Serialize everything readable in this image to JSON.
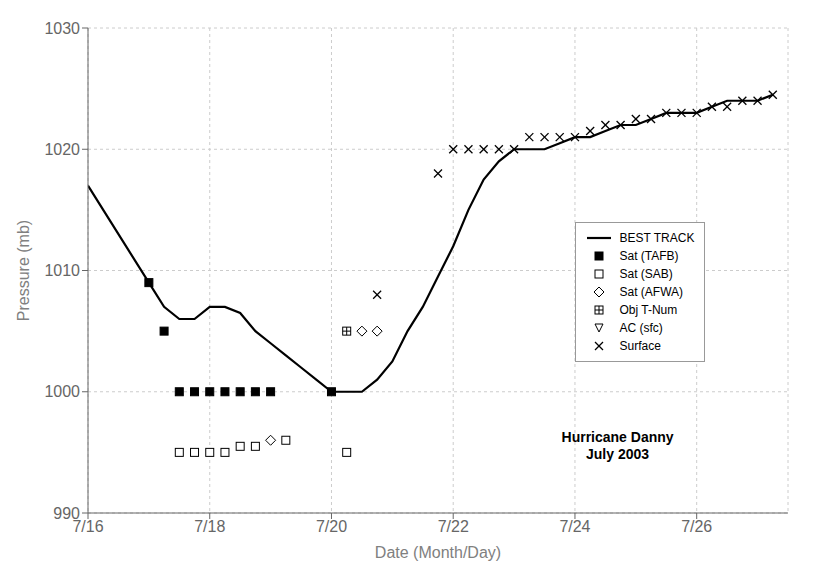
{
  "chart_data": {
    "type": "line",
    "x_label": "Date (Month/Day)",
    "y_label": "Pressure (mb)",
    "xlim": [
      16.0,
      27.5
    ],
    "xticks": [
      {
        "value": 16,
        "label": "7/16"
      },
      {
        "value": 18,
        "label": "7/18"
      },
      {
        "value": 20,
        "label": "7/20"
      },
      {
        "value": 22,
        "label": "7/22"
      },
      {
        "value": 24,
        "label": "7/24"
      },
      {
        "value": 26,
        "label": "7/26"
      }
    ],
    "ylim": [
      990,
      1030
    ],
    "yticks": [
      990,
      1000,
      1010,
      1020,
      1030
    ],
    "grid": true,
    "legend": "right",
    "series": [
      {
        "name": "BEST TRACK",
        "type": "line",
        "line_style": "solid",
        "color": "#000000",
        "x": [
          16.0,
          16.5,
          17.0,
          17.25,
          17.5,
          17.75,
          18.0,
          18.25,
          18.5,
          18.75,
          19.0,
          19.25,
          19.5,
          19.75,
          20.0,
          20.25,
          20.5,
          20.75,
          21.0,
          21.25,
          21.5,
          21.75,
          22.0,
          22.25,
          22.5,
          22.75,
          23.0,
          23.25,
          23.5,
          23.75,
          24.0,
          24.25,
          24.5,
          24.75,
          25.0,
          25.25,
          25.5,
          25.75,
          26.0,
          26.25,
          26.5,
          26.75,
          27.0,
          27.25
        ],
        "values": [
          1017,
          1013,
          1009,
          1007,
          1006,
          1006,
          1007,
          1007,
          1006.5,
          1005,
          1004,
          1003,
          1002,
          1001,
          1000,
          1000,
          1000,
          1001,
          1002.5,
          1005,
          1007,
          1009.5,
          1012,
          1015,
          1017.5,
          1019,
          1020,
          1020,
          1020,
          1020.5,
          1021,
          1021,
          1021.5,
          1022,
          1022,
          1022.5,
          1023,
          1023,
          1023,
          1023.5,
          1024,
          1024,
          1024,
          1024.5
        ]
      },
      {
        "name": "Sat (TAFB)",
        "type": "scatter",
        "marker": "square",
        "color": "#000000",
        "x": [
          17.0,
          17.25,
          17.5,
          17.75,
          18.0,
          18.25,
          18.5,
          18.75,
          19.0,
          20.0
        ],
        "values": [
          1009,
          1005,
          1000,
          1000,
          1000,
          1000,
          1000,
          1000,
          1000,
          1000
        ]
      },
      {
        "name": "Sat (SAB)",
        "type": "scatter",
        "marker": "square_open",
        "color": "#000000",
        "x": [
          17.5,
          17.75,
          18.0,
          18.25,
          18.5,
          18.75,
          19.25,
          20.25
        ],
        "values": [
          995,
          995,
          995,
          995,
          995.5,
          995.5,
          996,
          995
        ]
      },
      {
        "name": "Sat (AFWA)",
        "type": "scatter",
        "marker": "diamond_open",
        "color": "#000000",
        "x": [
          19.0,
          20.5,
          20.75
        ],
        "values": [
          996,
          1005,
          1005
        ]
      },
      {
        "name": "Obj T-Num",
        "type": "scatter",
        "marker": "boxed_plus",
        "color": "#000000",
        "x": [
          20.25
        ],
        "values": [
          1005
        ]
      },
      {
        "name": "AC (sfc)",
        "type": "scatter",
        "marker": "triangle_down_open",
        "color": "#000000",
        "x": [],
        "values": []
      },
      {
        "name": "Surface",
        "type": "scatter",
        "marker": "x",
        "color": "#000000",
        "x": [
          20.75,
          21.75,
          22.0,
          22.25,
          22.5,
          22.75,
          23.0,
          23.25,
          23.5,
          23.75,
          24.0,
          24.25,
          24.5,
          24.75,
          25.0,
          25.25,
          25.5,
          25.75,
          26.0,
          26.25,
          26.5,
          26.75,
          27.0,
          27.25
        ],
        "values": [
          1008,
          1018,
          1020,
          1020,
          1020,
          1020,
          1020,
          1021,
          1021,
          1021,
          1021,
          1021.5,
          1022,
          1022,
          1022.5,
          1022.5,
          1023,
          1023,
          1023,
          1023.5,
          1023.5,
          1024,
          1024,
          1024.5
        ]
      }
    ],
    "annotations": [
      {
        "text": "Hurricane Danny\nJuly 2003",
        "x": 24.7,
        "y": 995.5
      }
    ]
  }
}
